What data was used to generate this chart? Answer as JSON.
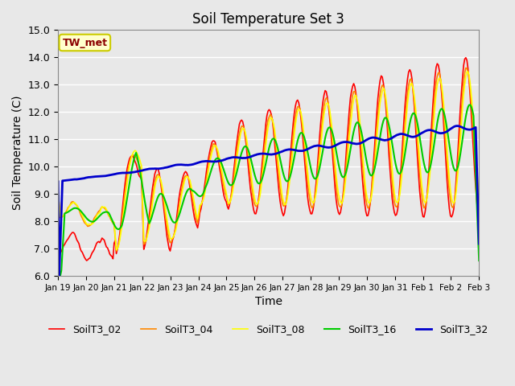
{
  "title": "Soil Temperature Set 3",
  "xlabel": "Time",
  "ylabel": "Soil Temperature (C)",
  "ylim": [
    6.0,
    15.0
  ],
  "yticks": [
    6.0,
    7.0,
    8.0,
    9.0,
    10.0,
    11.0,
    12.0,
    13.0,
    14.0,
    15.0
  ],
  "annotation_text": "TW_met",
  "annotation_color": "#8B0000",
  "annotation_bg": "#FFFFCC",
  "annotation_border": "#CCCC00",
  "series_colors": {
    "SoilT3_02": "#FF0000",
    "SoilT3_04": "#FF8800",
    "SoilT3_08": "#FFFF00",
    "SoilT3_16": "#00CC00",
    "SoilT3_32": "#0000CC"
  },
  "series_linewidths": {
    "SoilT3_02": 1.2,
    "SoilT3_04": 1.2,
    "SoilT3_08": 1.2,
    "SoilT3_16": 1.5,
    "SoilT3_32": 2.0
  },
  "background_color": "#E8E8E8",
  "plot_bg": "#E8E8E8",
  "grid_color": "#FFFFFF",
  "xtick_labels": [
    "Jan 19",
    "Jan 20",
    "Jan 21",
    "Jan 22",
    "Jan 23",
    "Jan 24",
    "Jan 25",
    "Jan 26",
    "Jan 27",
    "Jan 28",
    "Jan 29",
    "Jan 30",
    "Jan 31",
    "Feb 1",
    "Feb 2",
    "Feb 3"
  ],
  "legend_entries": [
    "SoilT3_02",
    "SoilT3_04",
    "SoilT3_08",
    "SoilT3_16",
    "SoilT3_32"
  ],
  "figsize": [
    6.4,
    4.8
  ],
  "dpi": 100
}
